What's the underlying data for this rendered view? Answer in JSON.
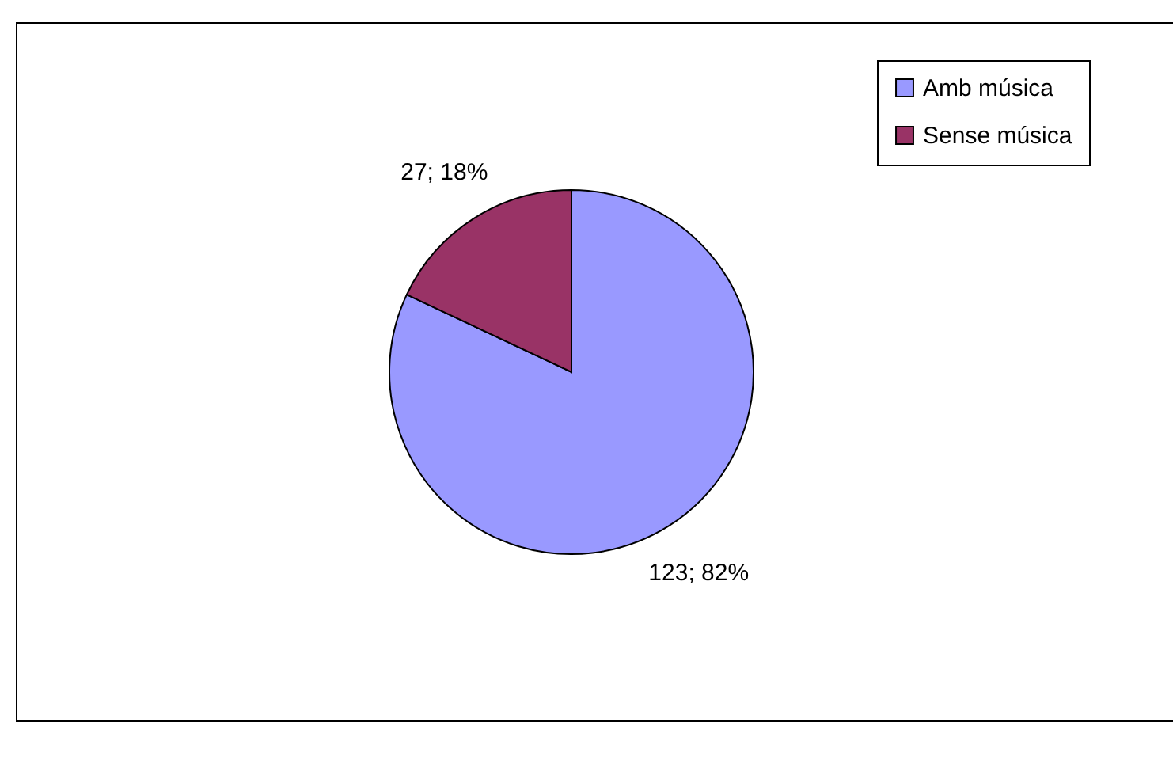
{
  "chart_data": {
    "type": "pie",
    "categories": [
      "Amb música",
      "Sense música"
    ],
    "values": [
      123,
      27
    ],
    "colors": [
      "#9999ff",
      "#993366"
    ],
    "value_labels": [
      "123; 82%",
      "27; 18%"
    ],
    "legend": "top right"
  }
}
